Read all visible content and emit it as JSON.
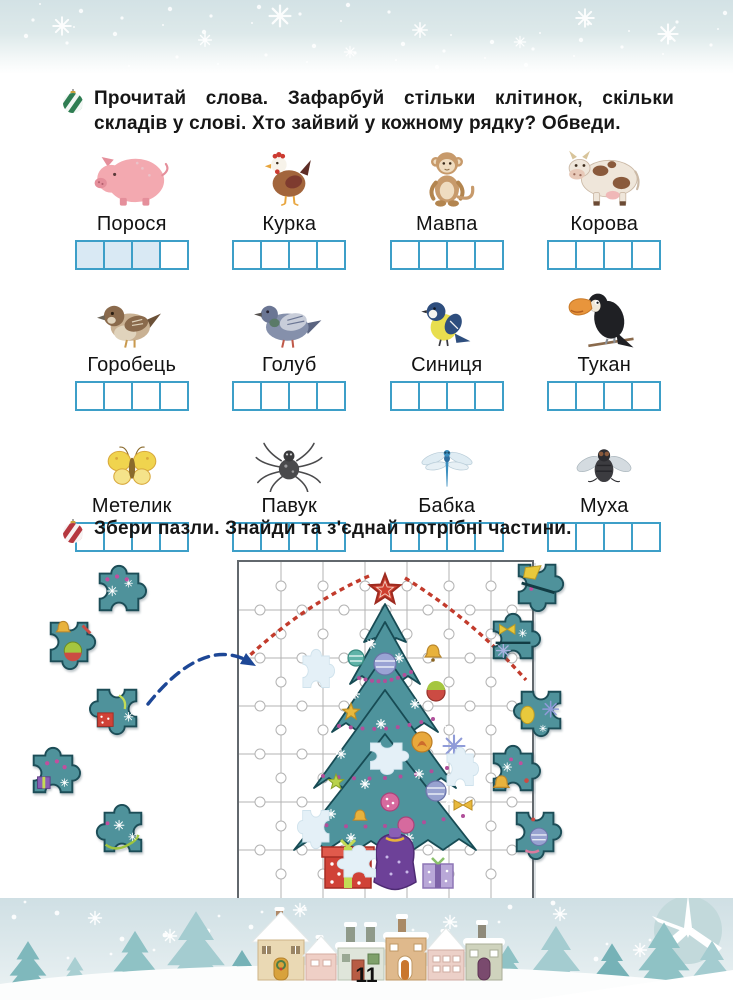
{
  "page": {
    "number": "11"
  },
  "syllable_task": {
    "icon": "green-striped-ornament-icon",
    "instruction": "Прочитай слова. Зафарбуй стільки клітинок, скільки складів у слові. Хто зайвий у кожному рядку? Обведи.",
    "animals": [
      {
        "name": "Порося",
        "kind": "pig",
        "boxes": 4,
        "filled": 3
      },
      {
        "name": "Курка",
        "kind": "hen",
        "boxes": 4,
        "filled": 0
      },
      {
        "name": "Мавпа",
        "kind": "monkey",
        "boxes": 4,
        "filled": 0
      },
      {
        "name": "Корова",
        "kind": "cow",
        "boxes": 4,
        "filled": 0
      },
      {
        "name": "Горобець",
        "kind": "sparrow",
        "boxes": 4,
        "filled": 0
      },
      {
        "name": "Голуб",
        "kind": "pigeon",
        "boxes": 4,
        "filled": 0
      },
      {
        "name": "Синиця",
        "kind": "tit",
        "boxes": 4,
        "filled": 0
      },
      {
        "name": "Тукан",
        "kind": "toucan",
        "boxes": 4,
        "filled": 0
      },
      {
        "name": "Метелик",
        "kind": "butterfly",
        "boxes": 4,
        "filled": 0
      },
      {
        "name": "Павук",
        "kind": "spider",
        "boxes": 4,
        "filled": 0
      },
      {
        "name": "Бабка",
        "kind": "dragonfly",
        "boxes": 4,
        "filled": 0
      },
      {
        "name": "Муха",
        "kind": "fly",
        "boxes": 4,
        "filled": 0
      }
    ]
  },
  "puzzle_task": {
    "icon": "red-striped-ornament-icon",
    "instruction": "Збери пазли. Знайди та з'єднай потрібні частини.",
    "subject": "christmas-tree-jigsaw",
    "left_pieces": 5,
    "right_pieces": 5,
    "missing_gaps": 5
  },
  "colors": {
    "box_border": "#3d9fc8",
    "box_filled": "#d9e9f4",
    "task1_icon": "#2f7d52",
    "task2_icon": "#b5373f",
    "tree_teal": "#4e939c",
    "arrow_navy": "#1d4796"
  }
}
